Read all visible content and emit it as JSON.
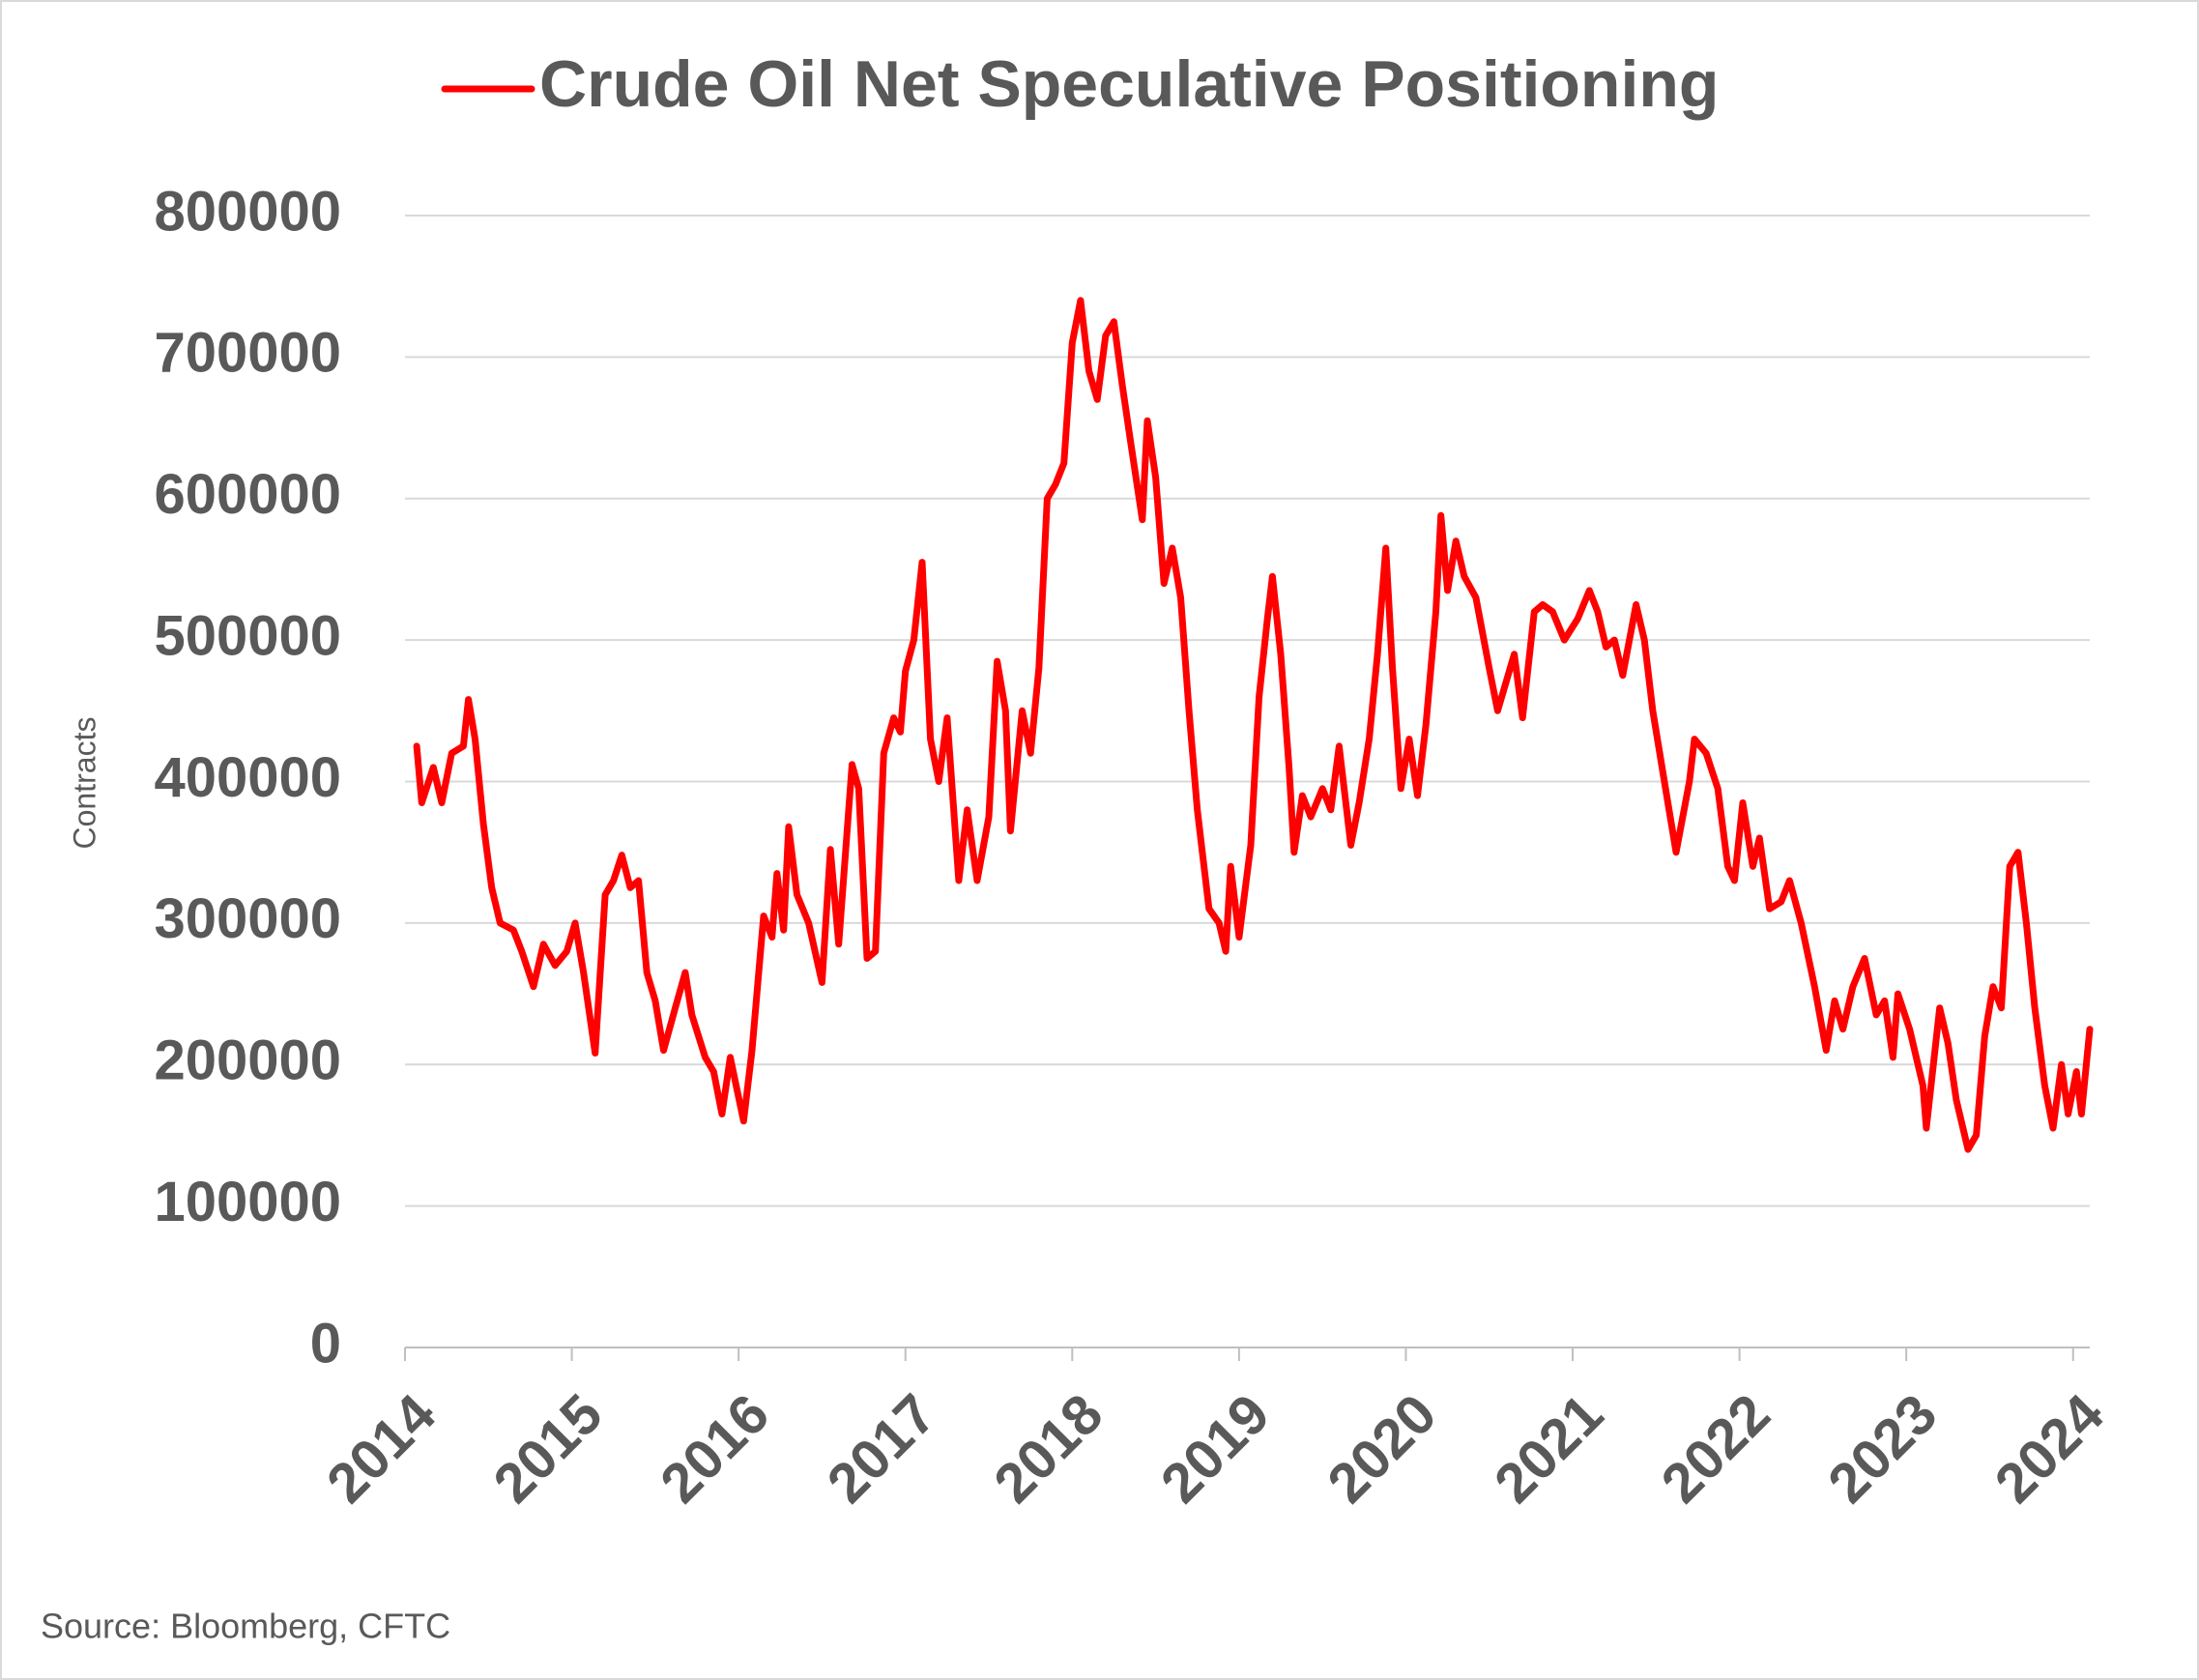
{
  "chart_data": {
    "type": "line",
    "ylabel": "Contracts",
    "source": "Source: Bloomberg, CFTC",
    "xlim": [
      2014,
      2024.1
    ],
    "xticks": [
      2014,
      2015,
      2016,
      2017,
      2018,
      2019,
      2020,
      2021,
      2022,
      2023,
      2024
    ],
    "ylim": [
      0,
      800000
    ],
    "yticks": [
      0,
      100000,
      200000,
      300000,
      400000,
      500000,
      600000,
      700000,
      800000
    ],
    "grid": true,
    "legend": "top",
    "x": [
      2014.07,
      2014.1,
      2014.17,
      2014.22,
      2014.28,
      2014.35,
      2014.38,
      2014.42,
      2014.47,
      2014.52,
      2014.57,
      2014.65,
      2014.7,
      2014.77,
      2014.83,
      2014.9,
      2014.97,
      2015.02,
      2015.07,
      2015.14,
      2015.2,
      2015.25,
      2015.3,
      2015.35,
      2015.4,
      2015.45,
      2015.5,
      2015.55,
      2015.62,
      2015.68,
      2015.72,
      2015.8,
      2015.85,
      2015.9,
      2015.95,
      2016.03,
      2016.08,
      2016.15,
      2016.2,
      2016.23,
      2016.27,
      2016.3,
      2016.35,
      2016.42,
      2016.5,
      2016.55,
      2016.6,
      2016.68,
      2016.72,
      2016.77,
      2016.82,
      2016.87,
      2016.93,
      2016.97,
      2017.0,
      2017.05,
      2017.1,
      2017.15,
      2017.2,
      2017.25,
      2017.32,
      2017.37,
      2017.43,
      2017.5,
      2017.55,
      2017.6,
      2017.63,
      2017.7,
      2017.75,
      2017.8,
      2017.85,
      2017.9,
      2017.95,
      2018.0,
      2018.05,
      2018.1,
      2018.15,
      2018.2,
      2018.25,
      2018.3,
      2018.35,
      2018.42,
      2018.45,
      2018.5,
      2018.55,
      2018.6,
      2018.65,
      2018.7,
      2018.75,
      2018.82,
      2018.88,
      2018.92,
      2018.95,
      2019.0,
      2019.07,
      2019.12,
      2019.17,
      2019.2,
      2019.25,
      2019.3,
      2019.33,
      2019.38,
      2019.43,
      2019.5,
      2019.55,
      2019.6,
      2019.67,
      2019.72,
      2019.78,
      2019.83,
      2019.88,
      2019.92,
      2019.97,
      2020.02,
      2020.07,
      2020.12,
      2020.18,
      2020.21,
      2020.25,
      2020.3,
      2020.35,
      2020.42,
      2020.5,
      2020.55,
      2020.6,
      2020.65,
      2020.7,
      2020.77,
      2020.82,
      2020.88,
      2020.95,
      2021.03,
      2021.1,
      2021.15,
      2021.2,
      2021.25,
      2021.3,
      2021.38,
      2021.43,
      2021.48,
      2021.55,
      2021.62,
      2021.7,
      2021.73,
      2021.8,
      2021.87,
      2021.93,
      2021.97,
      2022.02,
      2022.08,
      2022.12,
      2022.18,
      2022.25,
      2022.3,
      2022.37,
      2022.45,
      2022.52,
      2022.57,
      2022.62,
      2022.68,
      2022.75,
      2022.82,
      2022.87,
      2022.92,
      2022.95,
      2023.02,
      2023.1,
      2023.12,
      2023.2,
      2023.25,
      2023.3,
      2023.37,
      2023.42,
      2023.47,
      2023.52,
      2023.57,
      2023.62,
      2023.67,
      2023.72,
      2023.77,
      2023.83,
      2023.88,
      2023.93,
      2023.97,
      2024.02,
      2024.05,
      2024.1
    ],
    "series": [
      {
        "name": "Crude Oil Net Speculative Positioning",
        "color": "#ff0000",
        "values": [
          425000,
          385000,
          410000,
          385000,
          420000,
          425000,
          458000,
          430000,
          370000,
          325000,
          300000,
          295000,
          280000,
          255000,
          285000,
          270000,
          280000,
          300000,
          265000,
          208000,
          320000,
          330000,
          348000,
          325000,
          330000,
          265000,
          245000,
          210000,
          240000,
          265000,
          235000,
          205000,
          195000,
          165000,
          205000,
          160000,
          210000,
          305000,
          290000,
          335000,
          295000,
          368000,
          320000,
          300000,
          258000,
          352000,
          285000,
          412000,
          395000,
          275000,
          280000,
          420000,
          445000,
          435000,
          478000,
          500000,
          555000,
          430000,
          400000,
          445000,
          330000,
          380000,
          330000,
          375000,
          485000,
          450000,
          365000,
          450000,
          420000,
          480000,
          600000,
          610000,
          625000,
          710000,
          740000,
          690000,
          670000,
          715000,
          725000,
          680000,
          640000,
          585000,
          655000,
          615000,
          540000,
          565000,
          530000,
          450000,
          380000,
          310000,
          300000,
          280000,
          340000,
          290000,
          355000,
          460000,
          515000,
          545000,
          490000,
          410000,
          350000,
          390000,
          375000,
          395000,
          380000,
          425000,
          355000,
          385000,
          430000,
          490000,
          565000,
          480000,
          395000,
          430000,
          390000,
          440000,
          520000,
          588000,
          535000,
          570000,
          545000,
          530000,
          480000,
          450000,
          470000,
          490000,
          445000,
          520000,
          525000,
          520000,
          500000,
          515000,
          535000,
          520000,
          495000,
          500000,
          475000,
          525000,
          500000,
          450000,
          400000,
          350000,
          400000,
          430000,
          420000,
          395000,
          340000,
          330000,
          385000,
          340000,
          360000,
          310000,
          315000,
          330000,
          300000,
          255000,
          210000,
          245000,
          225000,
          255000,
          275000,
          235000,
          245000,
          205000,
          250000,
          225000,
          185000,
          155000,
          240000,
          215000,
          175000,
          140000,
          150000,
          220000,
          255000,
          240000,
          340000,
          350000,
          300000,
          240000,
          185000,
          155000,
          200000,
          165000,
          195000,
          165000,
          225000
        ]
      }
    ]
  }
}
